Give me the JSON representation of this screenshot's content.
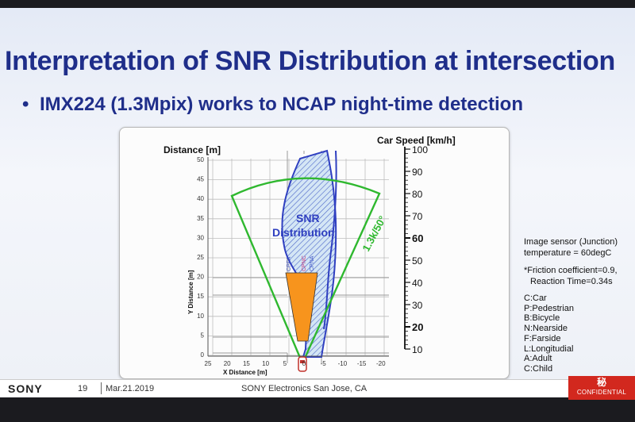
{
  "slide": {
    "title": "Interpretation of SNR Distribution at intersection",
    "bullet_marker": "•",
    "bullet": "IMX224 (1.3Mpix) works to NCAP night-time detection"
  },
  "figure": {
    "left_axis_title": "Distance [m]",
    "right_axis_title": "Car Speed [km/h]",
    "y_axis_label": "Y Distance [m]",
    "x_axis_label": "X Distance [m]",
    "y_ticks": [
      "50",
      "45",
      "40",
      "35",
      "30",
      "25",
      "20",
      "15",
      "10",
      "5",
      "0"
    ],
    "x_ticks": [
      "25",
      "20",
      "15",
      "10",
      "5",
      "0",
      "-5",
      "-10",
      "-15",
      "-20"
    ],
    "speed_ticks": [
      "100",
      "90",
      "80",
      "70",
      "60",
      "50",
      "40",
      "30",
      "20",
      "10"
    ],
    "speed_bold": [
      "60",
      "20"
    ],
    "snr_label_line1": "SNR",
    "snr_label_line2": "Distribution",
    "fov_label": "1.3k/50°",
    "curve_labels": [
      "CPFA",
      "CPNC",
      "CPNA"
    ],
    "colors": {
      "fov": "#2fb82f",
      "snr": "#2f3fc0",
      "target": "#f7941d",
      "curve_pink": "#c83a7a",
      "curve_blue": "#3d52c4"
    }
  },
  "notes": {
    "sensor_line1": "Image sensor (Junction)",
    "sensor_line2": "temperature = 60degC",
    "friction_line1": "*Friction coefficient=0.9,",
    "friction_line2": "Reaction Time=0.34s",
    "legend": [
      "C:Car",
      "P:Pedestrian",
      "B:Bicycle",
      "N:Nearside",
      "F:Farside",
      "L:Longitudial",
      "A:Adult",
      "C:Child"
    ]
  },
  "footer": {
    "brand": "SONY",
    "page": "19",
    "date": "Mar.21.2019",
    "location": "SONY Electronics San Jose, CA",
    "badge_mark": "秘",
    "badge_label": "CONFIDENTIAL"
  }
}
